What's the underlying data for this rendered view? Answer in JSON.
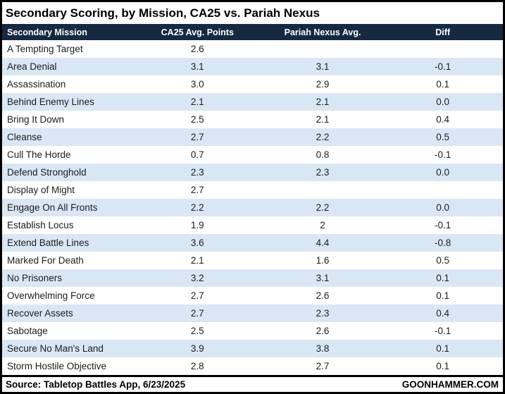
{
  "title": "Secondary Scoring, by Mission, CA25 vs. Pariah Nexus",
  "footer": {
    "source": "Source: Tabletop Battles App, 6/23/2025",
    "site": "GOONHAMMER.COM"
  },
  "colors": {
    "header_bg": "#172940",
    "header_text": "#ffffff",
    "row_stripe": "#d9e7f5",
    "row_plain": "#ffffff",
    "border": "#000000",
    "cell_text": "#1c1c1c"
  },
  "chart_data": {
    "type": "table",
    "title": "Secondary Scoring, by Mission, CA25 vs. Pariah Nexus",
    "columns": [
      "Secondary Mission",
      "CA25 Avg. Points",
      "Pariah Nexus Avg.",
      "Diff"
    ],
    "rows": [
      [
        "A Tempting Target",
        "2.6",
        "",
        ""
      ],
      [
        "Area Denial",
        "3.1",
        "3.1",
        "-0.1"
      ],
      [
        "Assassination",
        "3.0",
        "2.9",
        "0.1"
      ],
      [
        "Behind Enemy Lines",
        "2.1",
        "2.1",
        "0.0"
      ],
      [
        "Bring It Down",
        "2.5",
        "2.1",
        "0.4"
      ],
      [
        "Cleanse",
        "2.7",
        "2.2",
        "0.5"
      ],
      [
        "Cull The Horde",
        "0.7",
        "0.8",
        "-0.1"
      ],
      [
        "Defend Stronghold",
        "2.3",
        "2.3",
        "0.0"
      ],
      [
        "Display of Might",
        "2.7",
        "",
        ""
      ],
      [
        "Engage On All Fronts",
        "2.2",
        "2.2",
        "0.0"
      ],
      [
        "Establish Locus",
        "1.9",
        "2",
        "-0.1"
      ],
      [
        "Extend Battle Lines",
        "3.6",
        "4.4",
        "-0.8"
      ],
      [
        "Marked For Death",
        "2.1",
        "1.6",
        "0.5"
      ],
      [
        "No Prisoners",
        "3.2",
        "3.1",
        "0.1"
      ],
      [
        "Overwhelming Force",
        "2.7",
        "2.6",
        "0.1"
      ],
      [
        "Recover Assets",
        "2.7",
        "2.3",
        "0.4"
      ],
      [
        "Sabotage",
        "2.5",
        "2.6",
        "-0.1"
      ],
      [
        "Secure No Man's Land",
        "3.9",
        "3.8",
        "0.1"
      ],
      [
        "Storm Hostile Objective",
        "2.8",
        "2.7",
        "0.1"
      ]
    ],
    "layout": {
      "striped_rows": true,
      "numeric_columns_alignment": "center",
      "mission_column_alignment": "left"
    }
  }
}
